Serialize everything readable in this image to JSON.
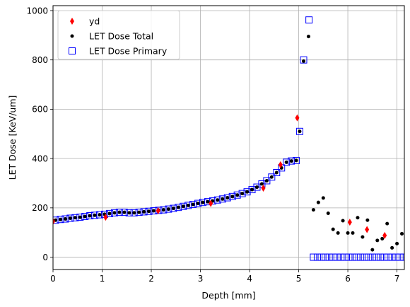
{
  "chart_data": {
    "type": "scatter",
    "xlabel": "Depth [mm]",
    "ylabel": "LET Dose [KeV/um]",
    "xlim": [
      0,
      7.15
    ],
    "ylim": [
      -50,
      1020
    ],
    "grid": true,
    "legend_placement": "upper-left",
    "x_ticks": [
      0,
      1,
      2,
      3,
      4,
      5,
      6,
      7
    ],
    "y_ticks": [
      0,
      200,
      400,
      600,
      800,
      1000
    ],
    "series": [
      {
        "name": "yd",
        "marker": "thin-diamond",
        "color": "#ff0000",
        "points": [
          [
            0.0,
            145
          ],
          [
            1.07,
            162
          ],
          [
            2.14,
            188
          ],
          [
            3.21,
            218
          ],
          [
            4.28,
            280
          ],
          [
            4.63,
            375
          ],
          [
            4.97,
            565
          ],
          [
            6.04,
            142
          ],
          [
            6.39,
            112
          ],
          [
            6.75,
            88
          ]
        ]
      },
      {
        "name": "LET Dose Total",
        "marker": "dot",
        "color": "#000000",
        "points": [
          [
            0.05,
            150
          ],
          [
            0.15,
            153
          ],
          [
            0.25,
            155
          ],
          [
            0.35,
            158
          ],
          [
            0.45,
            160
          ],
          [
            0.55,
            162
          ],
          [
            0.65,
            165
          ],
          [
            0.75,
            168
          ],
          [
            0.85,
            170
          ],
          [
            0.95,
            172
          ],
          [
            1.05,
            174
          ],
          [
            1.15,
            177
          ],
          [
            1.25,
            180
          ],
          [
            1.35,
            182
          ],
          [
            1.45,
            182
          ],
          [
            1.55,
            180
          ],
          [
            1.65,
            180
          ],
          [
            1.75,
            182
          ],
          [
            1.85,
            184
          ],
          [
            1.95,
            186
          ],
          [
            2.05,
            188
          ],
          [
            2.15,
            190
          ],
          [
            2.25,
            192
          ],
          [
            2.35,
            195
          ],
          [
            2.45,
            198
          ],
          [
            2.55,
            202
          ],
          [
            2.65,
            206
          ],
          [
            2.75,
            210
          ],
          [
            2.85,
            214
          ],
          [
            2.95,
            218
          ],
          [
            3.05,
            222
          ],
          [
            3.15,
            225
          ],
          [
            3.25,
            228
          ],
          [
            3.35,
            232
          ],
          [
            3.45,
            236
          ],
          [
            3.55,
            241
          ],
          [
            3.65,
            246
          ],
          [
            3.75,
            252
          ],
          [
            3.85,
            258
          ],
          [
            3.95,
            265
          ],
          [
            4.05,
            274
          ],
          [
            4.15,
            284
          ],
          [
            4.25,
            297
          ],
          [
            4.35,
            310
          ],
          [
            4.45,
            325
          ],
          [
            4.55,
            343
          ],
          [
            4.65,
            362
          ],
          [
            4.75,
            385
          ],
          [
            4.85,
            390
          ],
          [
            4.95,
            392
          ],
          [
            5.02,
            510
          ],
          [
            5.1,
            795
          ],
          [
            5.2,
            895
          ],
          [
            5.3,
            192
          ],
          [
            5.4,
            222
          ],
          [
            5.5,
            240
          ],
          [
            5.6,
            178
          ],
          [
            5.7,
            113
          ],
          [
            5.8,
            98
          ],
          [
            5.9,
            148
          ],
          [
            6.0,
            98
          ],
          [
            6.1,
            98
          ],
          [
            6.2,
            160
          ],
          [
            6.3,
            82
          ],
          [
            6.4,
            150
          ],
          [
            6.5,
            30
          ],
          [
            6.6,
            68
          ],
          [
            6.7,
            75
          ],
          [
            6.8,
            136
          ],
          [
            6.9,
            38
          ],
          [
            7.0,
            55
          ],
          [
            7.1,
            95
          ]
        ]
      },
      {
        "name": "LET Dose Primary",
        "marker": "open-square",
        "color": "#0000ff",
        "points": [
          [
            0.05,
            150
          ],
          [
            0.15,
            153
          ],
          [
            0.25,
            155
          ],
          [
            0.35,
            158
          ],
          [
            0.45,
            160
          ],
          [
            0.55,
            162
          ],
          [
            0.65,
            165
          ],
          [
            0.75,
            168
          ],
          [
            0.85,
            170
          ],
          [
            0.95,
            172
          ],
          [
            1.05,
            174
          ],
          [
            1.15,
            177
          ],
          [
            1.25,
            180
          ],
          [
            1.35,
            182
          ],
          [
            1.45,
            182
          ],
          [
            1.55,
            180
          ],
          [
            1.65,
            180
          ],
          [
            1.75,
            182
          ],
          [
            1.85,
            184
          ],
          [
            1.95,
            186
          ],
          [
            2.05,
            188
          ],
          [
            2.15,
            190
          ],
          [
            2.25,
            192
          ],
          [
            2.35,
            195
          ],
          [
            2.45,
            198
          ],
          [
            2.55,
            202
          ],
          [
            2.65,
            206
          ],
          [
            2.75,
            210
          ],
          [
            2.85,
            214
          ],
          [
            2.95,
            218
          ],
          [
            3.05,
            222
          ],
          [
            3.15,
            225
          ],
          [
            3.25,
            228
          ],
          [
            3.35,
            232
          ],
          [
            3.45,
            236
          ],
          [
            3.55,
            241
          ],
          [
            3.65,
            246
          ],
          [
            3.75,
            252
          ],
          [
            3.85,
            258
          ],
          [
            3.95,
            265
          ],
          [
            4.05,
            274
          ],
          [
            4.15,
            284
          ],
          [
            4.25,
            297
          ],
          [
            4.35,
            310
          ],
          [
            4.45,
            325
          ],
          [
            4.55,
            343
          ],
          [
            4.65,
            362
          ],
          [
            4.75,
            385
          ],
          [
            4.85,
            390
          ],
          [
            4.95,
            392
          ],
          [
            5.02,
            510
          ],
          [
            5.1,
            800
          ],
          [
            5.21,
            962
          ],
          [
            5.3,
            0
          ],
          [
            5.38,
            0
          ],
          [
            5.46,
            0
          ],
          [
            5.54,
            0
          ],
          [
            5.62,
            0
          ],
          [
            5.7,
            0
          ],
          [
            5.78,
            0
          ],
          [
            5.86,
            0
          ],
          [
            5.94,
            0
          ],
          [
            6.02,
            0
          ],
          [
            6.1,
            0
          ],
          [
            6.18,
            0
          ],
          [
            6.26,
            0
          ],
          [
            6.34,
            0
          ],
          [
            6.42,
            0
          ],
          [
            6.5,
            0
          ],
          [
            6.58,
            0
          ],
          [
            6.66,
            0
          ],
          [
            6.74,
            0
          ],
          [
            6.82,
            0
          ],
          [
            6.9,
            0
          ],
          [
            6.98,
            0
          ],
          [
            7.06,
            0
          ],
          [
            7.14,
            0
          ]
        ]
      }
    ]
  }
}
